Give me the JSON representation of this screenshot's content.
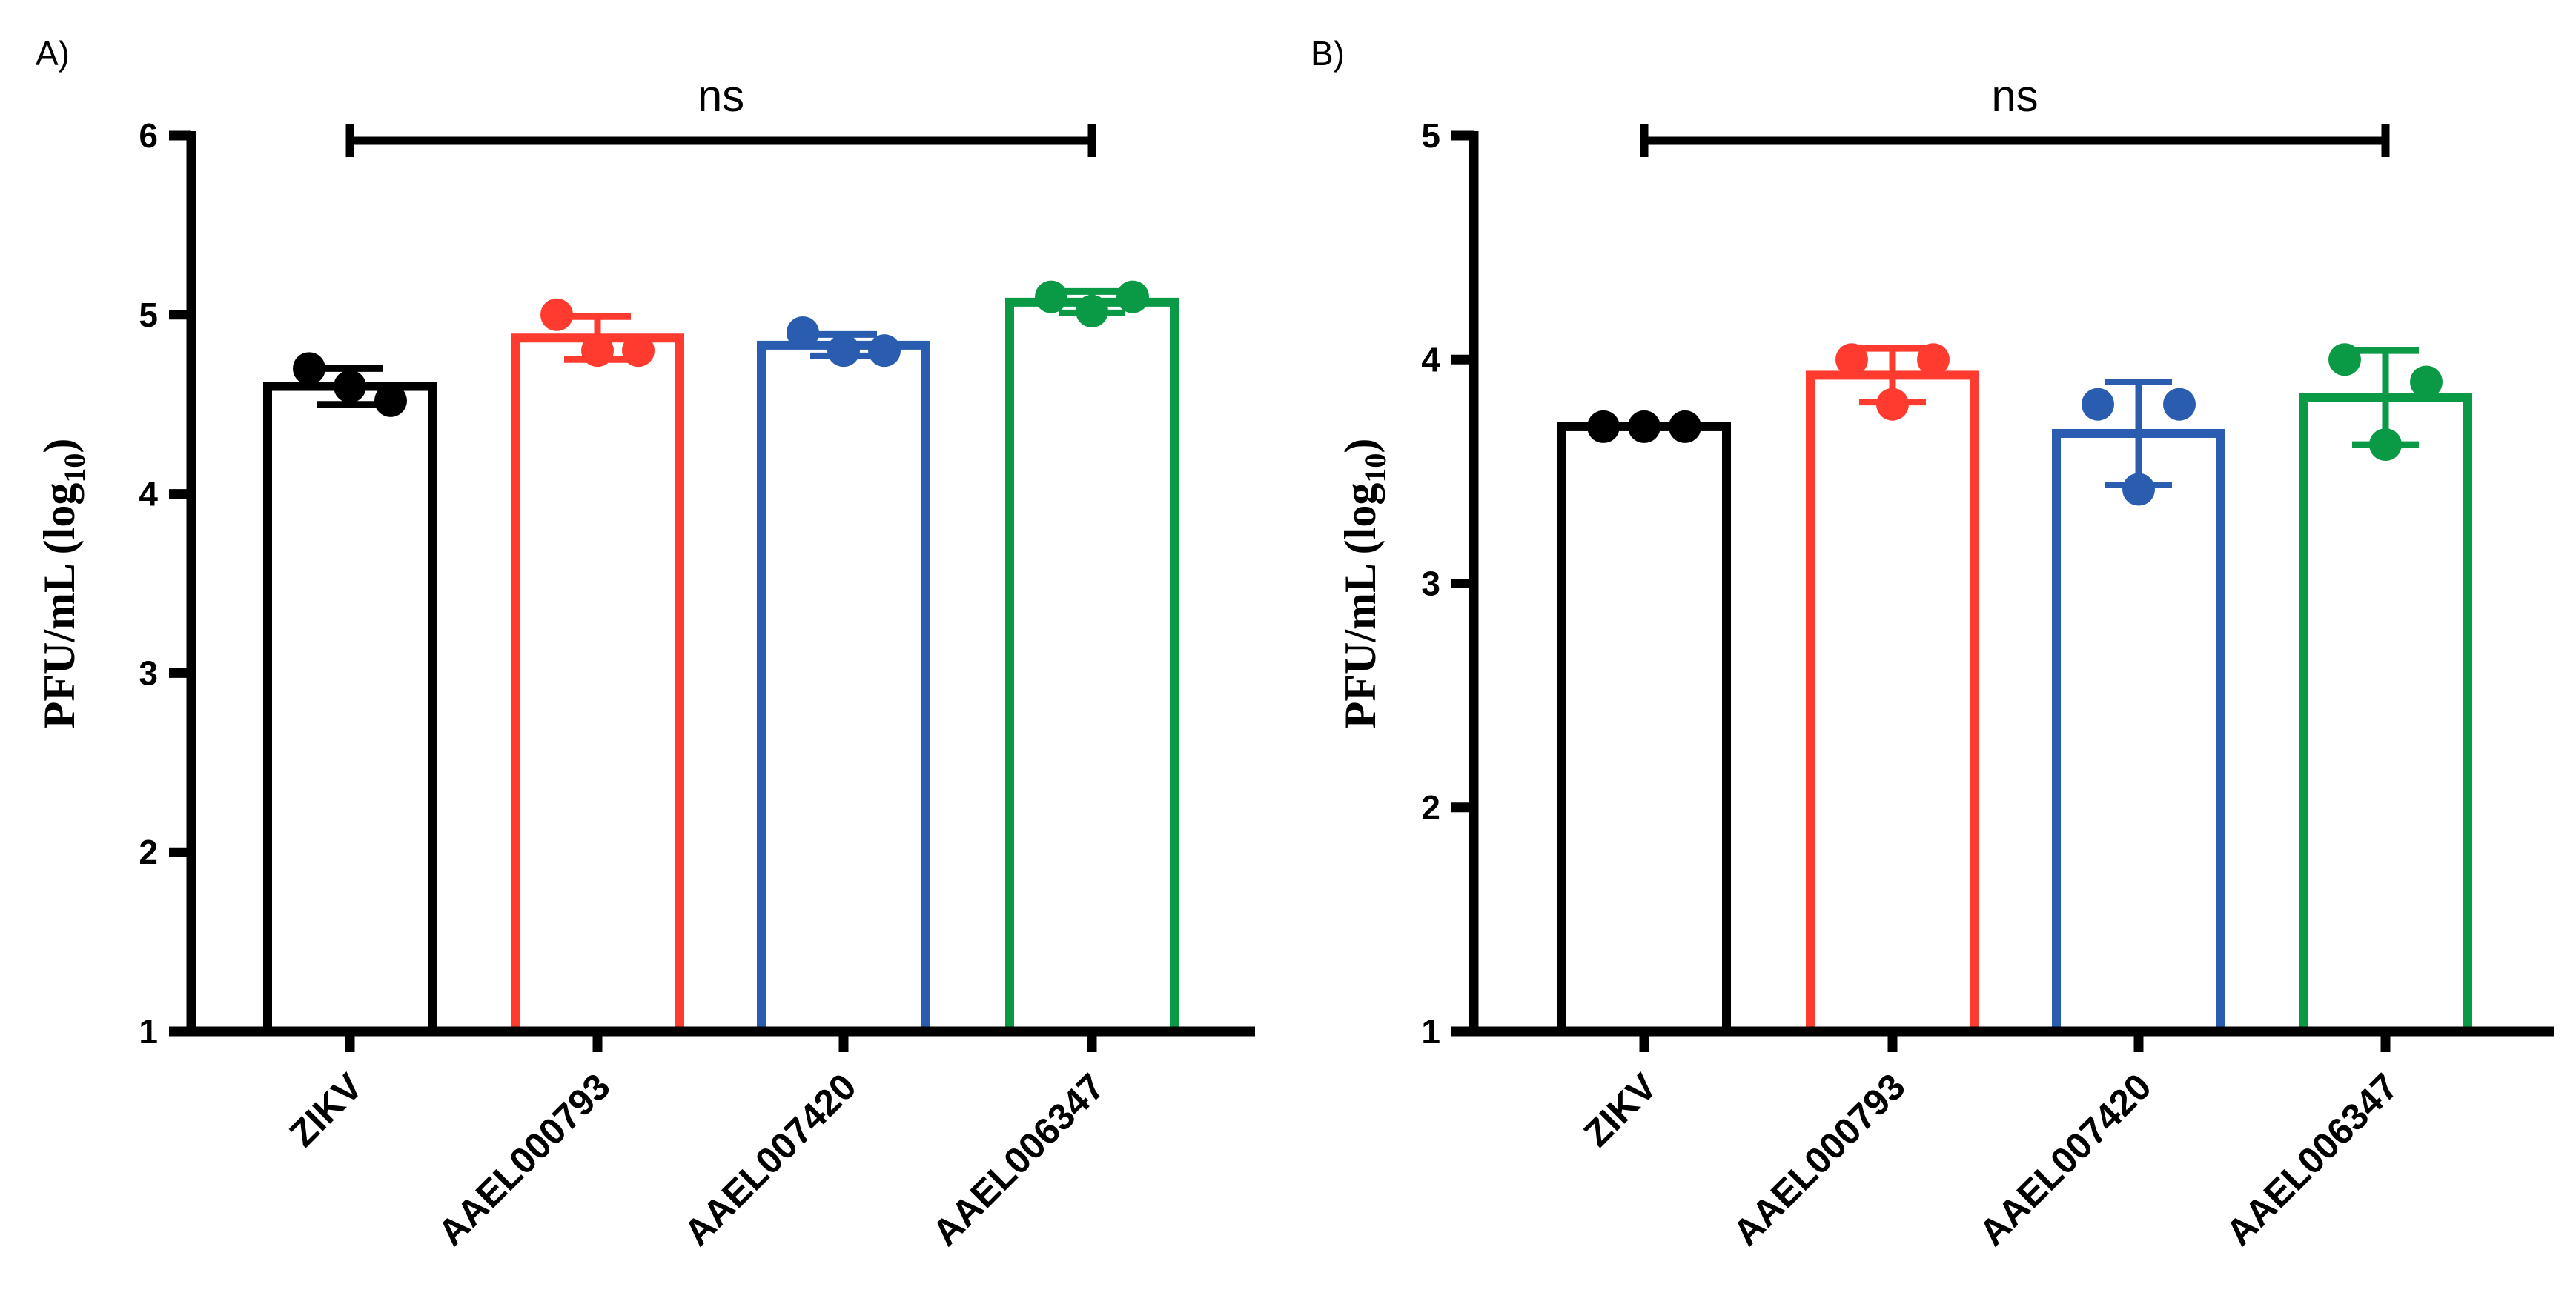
{
  "chart_data": [
    {
      "type": "bar",
      "panel_label": "A)",
      "ylabel_main": "PFU/mL (log",
      "ylabel_sub": "10",
      "ylabel_close": ")",
      "xlabel": "",
      "ylim": [
        1,
        6
      ],
      "yticks": [
        1,
        2,
        3,
        4,
        5,
        6
      ],
      "categories": [
        "ZIKV",
        "AAEL000793",
        "AAEL007420",
        "AAEL006347"
      ],
      "colors": [
        "#000000",
        "#ff3b30",
        "#2a5db0",
        "#0a9a46"
      ],
      "values": [
        4.6,
        4.87,
        4.83,
        5.07
      ],
      "error": [
        0.1,
        0.12,
        0.06,
        0.06
      ],
      "points": [
        [
          4.7,
          4.6,
          4.52
        ],
        [
          5.0,
          4.8,
          4.8
        ],
        [
          4.9,
          4.8,
          4.8
        ],
        [
          5.1,
          5.02,
          5.1
        ]
      ],
      "significance": {
        "label": "ns",
        "from": "ZIKV",
        "to": "AAEL006347"
      }
    },
    {
      "type": "bar",
      "panel_label": "B)",
      "ylabel_main": "PFU/mL (log",
      "ylabel_sub": "10",
      "ylabel_close": ")",
      "xlabel": "",
      "ylim": [
        1,
        5
      ],
      "yticks": [
        1,
        2,
        3,
        4,
        5
      ],
      "categories": [
        "ZIKV",
        "AAEL000793",
        "AAEL007420",
        "AAEL006347"
      ],
      "colors": [
        "#000000",
        "#ff3b30",
        "#2a5db0",
        "#0a9a46"
      ],
      "values": [
        3.7,
        3.93,
        3.67,
        3.83
      ],
      "error": [
        0.0,
        0.12,
        0.23,
        0.21
      ],
      "points": [
        [
          3.7,
          3.7,
          3.7
        ],
        [
          4.0,
          3.8,
          4.0
        ],
        [
          3.8,
          3.42,
          3.8
        ],
        [
          4.0,
          3.62,
          3.9
        ]
      ],
      "significance": {
        "label": "ns",
        "from": "ZIKV",
        "to": "AAEL006347"
      }
    }
  ]
}
